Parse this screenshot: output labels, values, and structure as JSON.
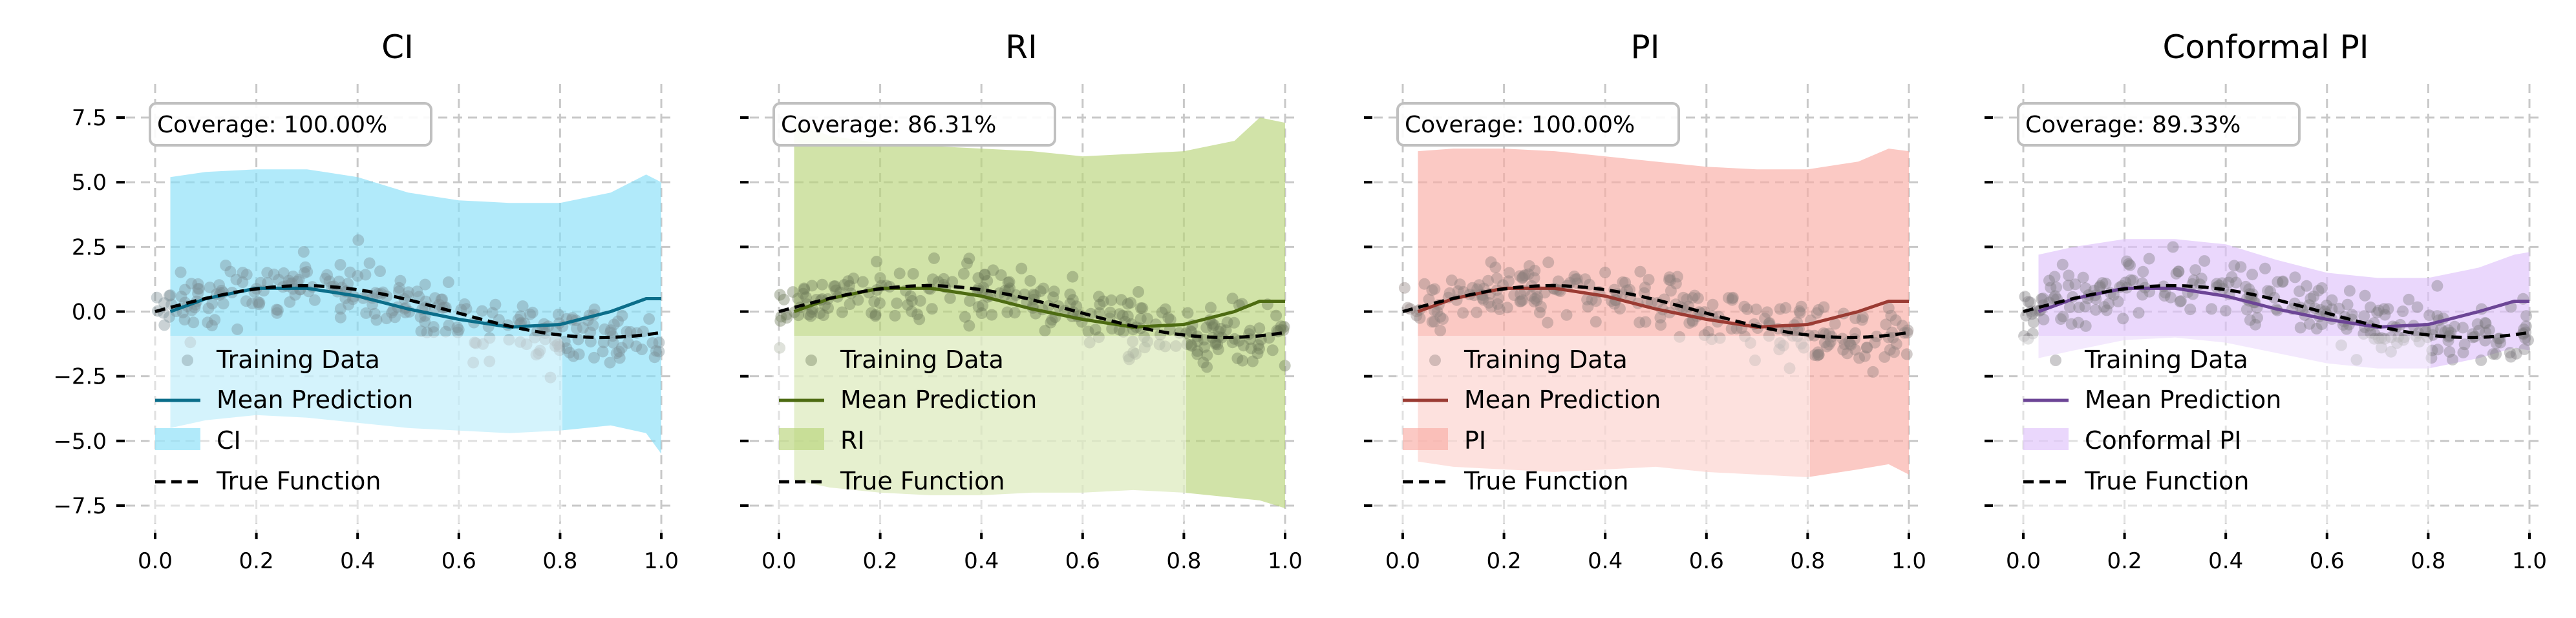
{
  "chart_data": [
    {
      "type": "line",
      "title": "CI",
      "coverage": "Coverage: 100.00%",
      "band_label": "CI",
      "colors": {
        "band": "#87dff8",
        "mean": "#0b6e8a",
        "points": "#7b8f96"
      },
      "xlim": [
        -0.05,
        1.01
      ],
      "ylim": [
        -8.3,
        8.3
      ],
      "xticks": [
        "0.0",
        "0.2",
        "0.4",
        "0.6",
        "0.8",
        "1.0"
      ],
      "yticks": [
        "7.5",
        "5.0",
        "2.5",
        "0.0",
        "−2.5",
        "−5.0",
        "−7.5"
      ],
      "grid": true,
      "legend_position": "lower-left",
      "legend": [
        "Training Data",
        "Mean Prediction",
        "CI",
        "True Function"
      ],
      "x": [
        0.03,
        0.1,
        0.2,
        0.3,
        0.4,
        0.5,
        0.6,
        0.7,
        0.8,
        0.9,
        0.97,
        1.0
      ],
      "mean": [
        0.0,
        0.5,
        0.9,
        0.9,
        0.6,
        0.1,
        -0.3,
        -0.6,
        -0.5,
        0.0,
        0.5,
        0.5
      ],
      "lower": [
        -4.5,
        -4.2,
        -4.0,
        -4.1,
        -4.3,
        -4.5,
        -4.6,
        -4.7,
        -4.6,
        -4.4,
        -4.7,
        -5.5
      ],
      "upper": [
        5.2,
        5.4,
        5.5,
        5.5,
        5.2,
        4.6,
        4.3,
        4.2,
        4.2,
        4.6,
        5.3,
        5.0
      ]
    },
    {
      "type": "line",
      "title": "RI",
      "coverage": "Coverage: 86.31%",
      "band_label": "RI",
      "colors": {
        "band": "#b8d47a",
        "mean": "#4d6b12",
        "points": "#6f7a5a"
      },
      "xlim": [
        -0.05,
        1.01
      ],
      "ylim": [
        -8.3,
        8.3
      ],
      "xticks": [
        "0.0",
        "0.2",
        "0.4",
        "0.6",
        "0.8",
        "1.0"
      ],
      "yticks": [
        "7.5",
        "5.0",
        "2.5",
        "0.0",
        "−2.5",
        "−5.0",
        "−7.5"
      ],
      "grid": true,
      "legend_position": "lower-left",
      "legend": [
        "Training Data",
        "Mean Prediction",
        "RI",
        "True Function"
      ],
      "x": [
        0.03,
        0.1,
        0.2,
        0.3,
        0.4,
        0.5,
        0.6,
        0.7,
        0.8,
        0.9,
        0.95,
        1.0
      ],
      "mean": [
        0.0,
        0.5,
        0.9,
        0.9,
        0.6,
        0.1,
        -0.3,
        -0.6,
        -0.5,
        0.0,
        0.4,
        0.4
      ],
      "lower": [
        -6.5,
        -6.8,
        -7.0,
        -7.1,
        -7.1,
        -7.0,
        -7.0,
        -6.9,
        -7.0,
        -7.2,
        -7.3,
        -7.6
      ],
      "upper": [
        7.3,
        6.8,
        6.5,
        6.4,
        6.3,
        6.2,
        6.0,
        6.1,
        6.2,
        6.6,
        7.5,
        7.3
      ]
    },
    {
      "type": "line",
      "title": "PI",
      "coverage": "Coverage: 100.00%",
      "band_label": "PI",
      "colors": {
        "band": "#f9aca4",
        "mean": "#9b3b33",
        "points": "#8f7f7d"
      },
      "xlim": [
        -0.05,
        1.01
      ],
      "ylim": [
        -8.3,
        8.3
      ],
      "xticks": [
        "0.0",
        "0.2",
        "0.4",
        "0.6",
        "0.8",
        "1.0"
      ],
      "yticks": [
        "7.5",
        "5.0",
        "2.5",
        "0.0",
        "−2.5",
        "−5.0",
        "−7.5"
      ],
      "grid": true,
      "legend_position": "lower-left",
      "legend": [
        "Training Data",
        "Mean Prediction",
        "PI",
        "True Function"
      ],
      "x": [
        0.03,
        0.1,
        0.2,
        0.3,
        0.4,
        0.5,
        0.6,
        0.7,
        0.8,
        0.9,
        0.96,
        1.0
      ],
      "mean": [
        0.0,
        0.5,
        0.9,
        0.9,
        0.6,
        0.1,
        -0.3,
        -0.6,
        -0.5,
        0.0,
        0.4,
        0.4
      ],
      "lower": [
        -5.8,
        -6.0,
        -6.1,
        -6.2,
        -6.1,
        -6.0,
        -6.2,
        -6.3,
        -6.4,
        -6.1,
        -5.9,
        -6.3
      ],
      "upper": [
        6.2,
        6.3,
        6.3,
        6.2,
        6.0,
        5.8,
        5.6,
        5.5,
        5.5,
        5.8,
        6.3,
        6.2
      ]
    },
    {
      "type": "line",
      "title": "Conformal PI",
      "coverage": "Coverage: 89.33%",
      "band_label": "Conformal PI",
      "colors": {
        "band": "#dfc2fb",
        "mean": "#6c4596",
        "points": "#7d7a80"
      },
      "xlim": [
        -0.05,
        1.01
      ],
      "ylim": [
        -8.3,
        8.3
      ],
      "xticks": [
        "0.0",
        "0.2",
        "0.4",
        "0.6",
        "0.8",
        "1.0"
      ],
      "yticks": [
        "7.5",
        "5.0",
        "2.5",
        "0.0",
        "−2.5",
        "−5.0",
        "−7.5"
      ],
      "grid": true,
      "legend_position": "lower-left",
      "legend": [
        "Training Data",
        "Mean Prediction",
        "Conformal PI",
        "True Function"
      ],
      "x": [
        0.03,
        0.1,
        0.2,
        0.3,
        0.4,
        0.5,
        0.6,
        0.7,
        0.8,
        0.9,
        0.97,
        1.0
      ],
      "mean": [
        0.0,
        0.5,
        0.9,
        0.9,
        0.6,
        0.1,
        -0.3,
        -0.6,
        -0.5,
        0.0,
        0.4,
        0.4
      ],
      "lower": [
        -1.8,
        -1.5,
        -1.1,
        -1.0,
        -1.2,
        -1.6,
        -2.0,
        -2.2,
        -2.2,
        -1.8,
        -1.4,
        -1.5
      ],
      "upper": [
        2.2,
        2.5,
        2.8,
        2.8,
        2.6,
        2.0,
        1.5,
        1.3,
        1.3,
        1.7,
        2.2,
        2.3
      ]
    }
  ]
}
